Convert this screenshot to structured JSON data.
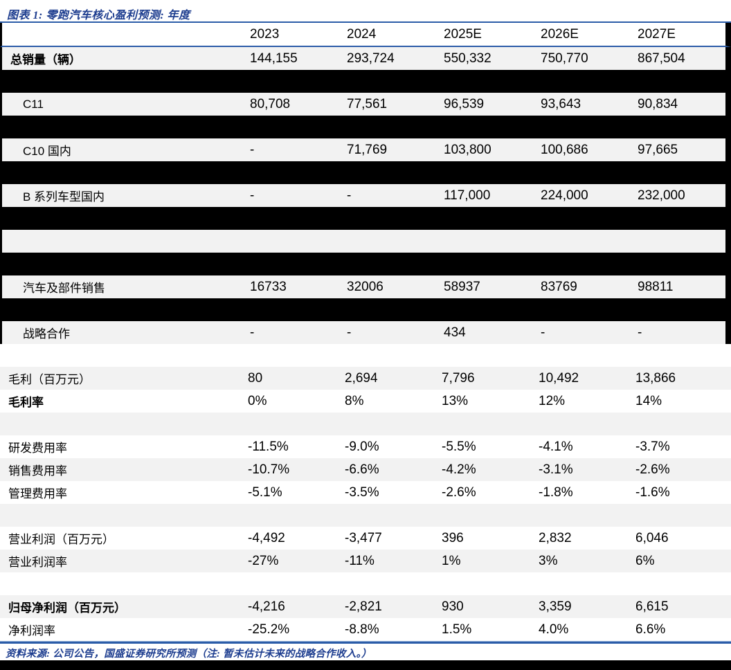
{
  "figure": {
    "title": "图表 1:  零跑汽车核心盈利预测:  年度",
    "source_note": "资料来源:  公司公告，国盛证券研究所预测（注:  暂未估计未来的战略合作收入。）"
  },
  "colors": {
    "accent_blue_text": "#1d3d8f",
    "rule_navy": "#2b5ca8",
    "row_gray": "#f2f2f2",
    "redaction_black": "#000000"
  },
  "table": {
    "columns": [
      "2023",
      "2024",
      "2025E",
      "2026E",
      "2027E"
    ],
    "rows": [
      {
        "type": "data",
        "shade": "gray",
        "edge": true,
        "bold": true,
        "indent": false,
        "label": "总销量（辆）",
        "values": [
          "144,155",
          "293,724",
          "550,332",
          "750,770",
          "867,504"
        ]
      },
      {
        "type": "redacted",
        "edge": true
      },
      {
        "type": "data",
        "shade": "gray",
        "edge": true,
        "bold": false,
        "indent": true,
        "label": "C11",
        "values": [
          "80,708",
          "77,561",
          "96,539",
          "93,643",
          "90,834"
        ]
      },
      {
        "type": "redacted",
        "edge": true
      },
      {
        "type": "data",
        "shade": "gray",
        "edge": true,
        "bold": false,
        "indent": true,
        "label": "C10 国内",
        "values": [
          "-",
          "71,769",
          "103,800",
          "100,686",
          "97,665"
        ]
      },
      {
        "type": "redacted",
        "edge": true
      },
      {
        "type": "data",
        "shade": "gray",
        "edge": true,
        "bold": false,
        "indent": true,
        "label": "B 系列车型国内",
        "values": [
          "-",
          "-",
          "117,000",
          "224,000",
          "232,000"
        ]
      },
      {
        "type": "redacted",
        "edge": true
      },
      {
        "type": "data",
        "shade": "gray",
        "edge": true,
        "bold": false,
        "indent": false,
        "label": "",
        "values": [
          "",
          "",
          "",
          "",
          ""
        ]
      },
      {
        "type": "redacted",
        "edge": true
      },
      {
        "type": "data",
        "shade": "gray",
        "edge": true,
        "bold": false,
        "indent": true,
        "label": "汽车及部件销售",
        "values": [
          "16733",
          "32006",
          "58937",
          "83769",
          "98811"
        ]
      },
      {
        "type": "redacted",
        "edge": true
      },
      {
        "type": "data",
        "shade": "gray",
        "edge": true,
        "bold": false,
        "indent": true,
        "label": "战略合作",
        "values": [
          "-",
          "-",
          "434",
          "-",
          "-"
        ]
      },
      {
        "type": "data",
        "shade": "white",
        "edge": false,
        "bold": false,
        "indent": false,
        "label": "",
        "values": [
          "",
          "",
          "",
          "",
          ""
        ]
      },
      {
        "type": "data",
        "shade": "gray",
        "edge": false,
        "bold": false,
        "indent": false,
        "label": "毛利（百万元）",
        "values": [
          "80",
          "2,694",
          "7,796",
          "10,492",
          "13,866"
        ]
      },
      {
        "type": "data",
        "shade": "white",
        "edge": false,
        "bold": true,
        "indent": false,
        "label": "毛利率",
        "values": [
          "0%",
          "8%",
          "13%",
          "12%",
          "14%"
        ]
      },
      {
        "type": "data",
        "shade": "gray",
        "edge": false,
        "bold": false,
        "indent": false,
        "label": "",
        "values": [
          "",
          "",
          "",
          "",
          ""
        ]
      },
      {
        "type": "data",
        "shade": "white",
        "edge": false,
        "bold": false,
        "indent": false,
        "label": "研发费用率",
        "values": [
          "-11.5%",
          "-9.0%",
          "-5.5%",
          "-4.1%",
          "-3.7%"
        ]
      },
      {
        "type": "data",
        "shade": "gray",
        "edge": false,
        "bold": false,
        "indent": false,
        "label": "销售费用率",
        "values": [
          "-10.7%",
          "-6.6%",
          "-4.2%",
          "-3.1%",
          "-2.6%"
        ]
      },
      {
        "type": "data",
        "shade": "white",
        "edge": false,
        "bold": false,
        "indent": false,
        "label": "管理费用率",
        "values": [
          "-5.1%",
          "-3.5%",
          "-2.6%",
          "-1.8%",
          "-1.6%"
        ]
      },
      {
        "type": "data",
        "shade": "gray",
        "edge": false,
        "bold": false,
        "indent": false,
        "label": "",
        "values": [
          "",
          "",
          "",
          "",
          ""
        ]
      },
      {
        "type": "data",
        "shade": "white",
        "edge": false,
        "bold": false,
        "indent": false,
        "label": "营业利润（百万元）",
        "values": [
          "-4,492",
          "-3,477",
          "396",
          "2,832",
          "6,046"
        ]
      },
      {
        "type": "data",
        "shade": "gray",
        "edge": false,
        "bold": false,
        "indent": false,
        "label": "营业利润率",
        "values": [
          "-27%",
          "-11%",
          "1%",
          "3%",
          "6%"
        ]
      },
      {
        "type": "data",
        "shade": "white",
        "edge": false,
        "bold": false,
        "indent": false,
        "label": "",
        "values": [
          "",
          "",
          "",
          "",
          ""
        ]
      },
      {
        "type": "data",
        "shade": "gray",
        "edge": false,
        "bold": true,
        "indent": false,
        "label": "归母净利润（百万元）",
        "values": [
          "-4,216",
          "-2,821",
          "930",
          "3,359",
          "6,615"
        ]
      },
      {
        "type": "data",
        "shade": "white",
        "edge": false,
        "bold": false,
        "indent": false,
        "label": "净利润率",
        "values": [
          "-25.2%",
          "-8.8%",
          "1.5%",
          "4.0%",
          "6.6%"
        ]
      }
    ]
  }
}
